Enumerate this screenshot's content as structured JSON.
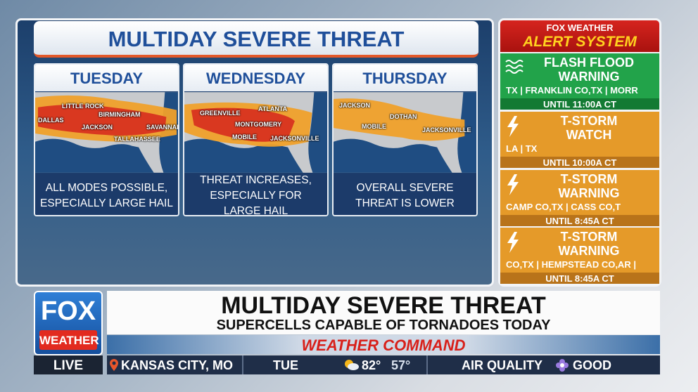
{
  "panel": {
    "title": "MULTIDAY SEVERE THREAT",
    "days": [
      {
        "day": "TUESDAY",
        "cities": [
          "LITTLE ROCK",
          "DALLAS",
          "BIRMINGHAM",
          "JACKSON",
          "SAVANNAH",
          "TALLAHASSEE"
        ],
        "note": [
          "ALL MODES POSSIBLE,",
          "ESPECIALLY LARGE HAIL"
        ]
      },
      {
        "day": "WEDNESDAY",
        "cities": [
          "GREENVILLE",
          "ATLANTA",
          "MONTGOMERY",
          "MOBILE",
          "JACKSONVILLE"
        ],
        "note": [
          "THREAT INCREASES,",
          "ESPECIALLY FOR",
          "LARGE HAIL"
        ]
      },
      {
        "day": "THURSDAY",
        "cities": [
          "JACKSON",
          "DOTHAN",
          "MOBILE",
          "JACKSONVILLE"
        ],
        "note": [
          "OVERALL SEVERE",
          "THREAT IS LOWER"
        ]
      }
    ]
  },
  "alerts": {
    "brand": "FOX WEATHER",
    "title": "ALERT SYSTEM",
    "items": [
      {
        "type": [
          "FLASH FLOOD",
          "WARNING"
        ],
        "areas": "TX | FRANKLIN CO,TX | MORR",
        "until": "UNTIL 11:00A CT"
      },
      {
        "type": [
          "T-STORM",
          "WATCH"
        ],
        "areas": "LA | TX",
        "until": "UNTIL 10:00A CT"
      },
      {
        "type": [
          "T-STORM",
          "WARNING"
        ],
        "areas": "CAMP CO,TX | CASS CO,T",
        "until": "UNTIL 8:45A CT"
      },
      {
        "type": [
          "T-STORM",
          "WARNING"
        ],
        "areas": "CO,TX | HEMPSTEAD CO,AR |",
        "until": "UNTIL 8:45A CT"
      }
    ]
  },
  "lower_third": {
    "logo_top": "FOX",
    "logo_bottom": "WEATHER",
    "live": "LIVE",
    "headline": "MULTIDAY SEVERE THREAT",
    "subhead": "SUPERCELLS CAPABLE OF TORNADOES TODAY",
    "banner": "WEATHER COMMAND",
    "ticker": {
      "location": "KANSAS CITY, MO",
      "day": "TUE",
      "high": "82°",
      "low": "57°",
      "air_label": "AIR QUALITY",
      "air_value": "GOOD"
    }
  }
}
